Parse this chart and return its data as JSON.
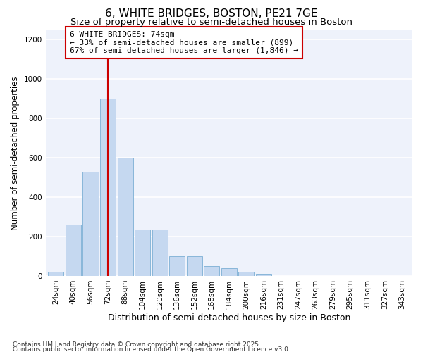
{
  "title": "6, WHITE BRIDGES, BOSTON, PE21 7GE",
  "subtitle": "Size of property relative to semi-detached houses in Boston",
  "xlabel": "Distribution of semi-detached houses by size in Boston",
  "ylabel": "Number of semi-detached properties",
  "categories": [
    "24sqm",
    "40sqm",
    "56sqm",
    "72sqm",
    "88sqm",
    "104sqm",
    "120sqm",
    "136sqm",
    "152sqm",
    "168sqm",
    "184sqm",
    "200sqm",
    "216sqm",
    "231sqm",
    "247sqm",
    "263sqm",
    "279sqm",
    "295sqm",
    "311sqm",
    "327sqm",
    "343sqm"
  ],
  "values": [
    20,
    260,
    530,
    900,
    600,
    235,
    235,
    100,
    100,
    50,
    40,
    20,
    10,
    0,
    0,
    0,
    0,
    0,
    0,
    0,
    0
  ],
  "bar_color": "#c5d8f0",
  "bar_edge_color": "#7bafd4",
  "vline_x_index": 3,
  "vline_color": "#cc0000",
  "annotation_text": "6 WHITE BRIDGES: 74sqm\n← 33% of semi-detached houses are smaller (899)\n67% of semi-detached houses are larger (1,846) →",
  "annotation_box_color": "#cc0000",
  "footnote1": "Contains HM Land Registry data © Crown copyright and database right 2025.",
  "footnote2": "Contains public sector information licensed under the Open Government Licence v3.0.",
  "ylim": [
    0,
    1250
  ],
  "yticks": [
    0,
    200,
    400,
    600,
    800,
    1000,
    1200
  ],
  "background_color": "#eef2fb",
  "grid_color": "#ffffff",
  "title_fontsize": 11,
  "subtitle_fontsize": 9.5,
  "axis_label_fontsize": 8.5,
  "tick_fontsize": 7.5,
  "annotation_fontsize": 8,
  "footnote_fontsize": 6.5
}
